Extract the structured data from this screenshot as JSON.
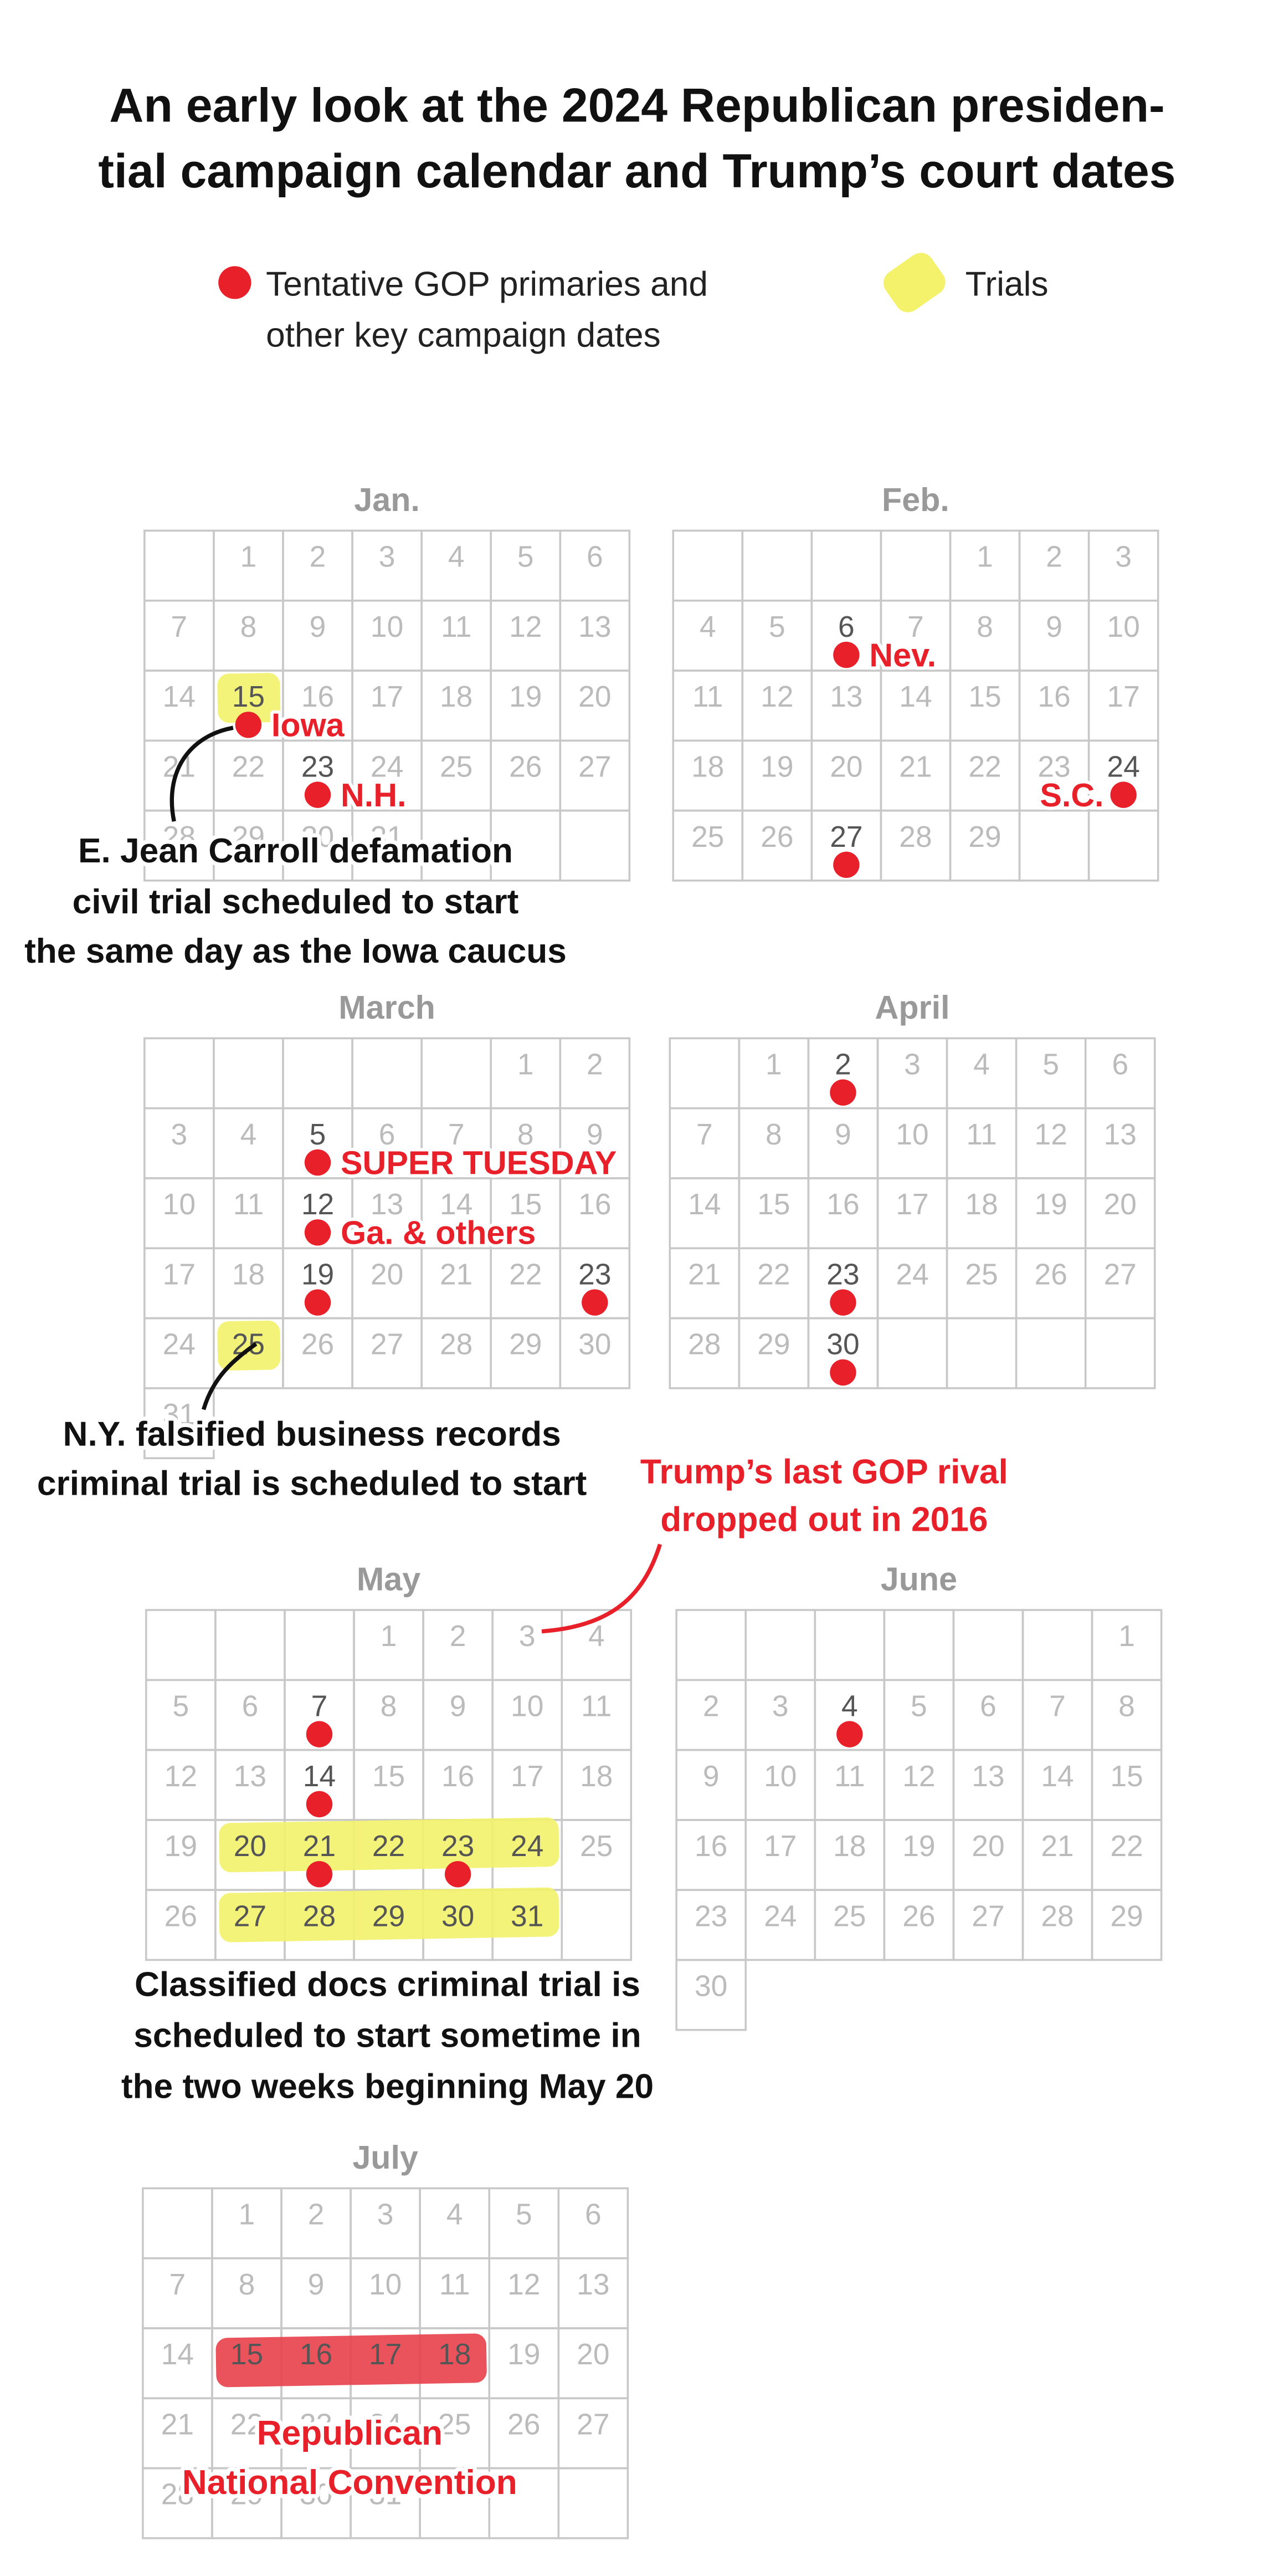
{
  "header": {
    "title_lines": [
      "An early look at the 2024 Republican presiden-",
      "tial campaign calendar and Trump’s court dates"
    ]
  },
  "legend": {
    "primaries_lines": [
      "Tentative GOP primaries and",
      "other key campaign dates"
    ],
    "trials": "Trials"
  },
  "months": [
    {
      "name": "Jan.",
      "weeks": [
        [
          null,
          1,
          2,
          3,
          4,
          5,
          6
        ],
        [
          7,
          8,
          9,
          10,
          11,
          12,
          13
        ],
        [
          14,
          15,
          16,
          17,
          18,
          19,
          20
        ],
        [
          21,
          22,
          23,
          24,
          25,
          26,
          27
        ],
        [
          28,
          29,
          30,
          31,
          null,
          null,
          null
        ]
      ],
      "events": [
        {
          "day": 15,
          "label": "Iowa"
        },
        {
          "day": 23,
          "label": "N.H."
        }
      ],
      "trial_days": [
        15
      ]
    },
    {
      "name": "Feb.",
      "weeks": [
        [
          null,
          null,
          null,
          null,
          1,
          2,
          3
        ],
        [
          4,
          5,
          6,
          7,
          8,
          9,
          10
        ],
        [
          11,
          12,
          13,
          14,
          15,
          16,
          17
        ],
        [
          18,
          19,
          20,
          21,
          22,
          23,
          24
        ],
        [
          25,
          26,
          27,
          28,
          29,
          null,
          null
        ]
      ],
      "events": [
        {
          "day": 6,
          "label": "Nev."
        },
        {
          "day": 24,
          "label": "S.C."
        },
        {
          "day": 27
        }
      ]
    },
    {
      "name": "March",
      "weeks": [
        [
          null,
          null,
          null,
          null,
          null,
          1,
          2
        ],
        [
          3,
          4,
          5,
          6,
          7,
          8,
          9
        ],
        [
          10,
          11,
          12,
          13,
          14,
          15,
          16
        ],
        [
          17,
          18,
          19,
          20,
          21,
          22,
          23
        ],
        [
          24,
          25,
          26,
          27,
          28,
          29,
          30
        ],
        [
          31,
          null,
          null,
          null,
          null,
          null,
          null
        ]
      ],
      "events": [
        {
          "day": 5,
          "label": "SUPER TUESDAY"
        },
        {
          "day": 12,
          "label": "Ga. & others"
        },
        {
          "day": 19
        },
        {
          "day": 23
        }
      ],
      "trial_days": [
        25
      ]
    },
    {
      "name": "April",
      "weeks": [
        [
          null,
          1,
          2,
          3,
          4,
          5,
          6
        ],
        [
          7,
          8,
          9,
          10,
          11,
          12,
          13
        ],
        [
          14,
          15,
          16,
          17,
          18,
          19,
          20
        ],
        [
          21,
          22,
          23,
          24,
          25,
          26,
          27
        ],
        [
          28,
          29,
          30,
          null,
          null,
          null,
          null
        ]
      ],
      "events": [
        {
          "day": 2
        },
        {
          "day": 23
        },
        {
          "day": 30
        }
      ]
    },
    {
      "name": "May",
      "weeks": [
        [
          null,
          null,
          null,
          1,
          2,
          3,
          4
        ],
        [
          5,
          6,
          7,
          8,
          9,
          10,
          11
        ],
        [
          12,
          13,
          14,
          15,
          16,
          17,
          18
        ],
        [
          19,
          20,
          21,
          22,
          23,
          24,
          25
        ],
        [
          26,
          27,
          28,
          29,
          30,
          31,
          null
        ]
      ],
      "events": [
        {
          "day": 7
        },
        {
          "day": 14
        },
        {
          "day": 21
        },
        {
          "day": 23
        }
      ],
      "trial_days": [
        20,
        21,
        22,
        23,
        24,
        27,
        28,
        29,
        30,
        31
      ]
    },
    {
      "name": "June",
      "weeks": [
        [
          null,
          null,
          null,
          null,
          null,
          null,
          1
        ],
        [
          2,
          3,
          4,
          5,
          6,
          7,
          8
        ],
        [
          9,
          10,
          11,
          12,
          13,
          14,
          15
        ],
        [
          16,
          17,
          18,
          19,
          20,
          21,
          22
        ],
        [
          23,
          24,
          25,
          26,
          27,
          28,
          29
        ],
        [
          30,
          null,
          null,
          null,
          null,
          null,
          null
        ]
      ],
      "events": [
        {
          "day": 4
        }
      ]
    },
    {
      "name": "July",
      "weeks": [
        [
          null,
          1,
          2,
          3,
          4,
          5,
          6
        ],
        [
          7,
          8,
          9,
          10,
          11,
          12,
          13
        ],
        [
          14,
          15,
          16,
          17,
          18,
          19,
          20
        ],
        [
          21,
          22,
          23,
          24,
          25,
          26,
          27
        ],
        [
          28,
          29,
          30,
          31,
          null,
          null,
          null
        ]
      ],
      "events": [],
      "convention_days": [
        15,
        16,
        17,
        18
      ]
    }
  ],
  "annotations": {
    "carroll_lines": [
      "E. Jean Carroll defamation",
      "civil trial scheduled to start",
      "the same day as the Iowa caucus"
    ],
    "ny_lines": [
      "N.Y. falsified business records",
      "criminal trial is scheduled to start"
    ],
    "rival_lines": [
      "Trump’s last GOP rival",
      "dropped out in 2016"
    ],
    "classified_lines": [
      "Classified docs criminal trial is",
      "scheduled to start sometime in",
      "the two weeks beginning May 20"
    ],
    "convention_lines": [
      "Republican",
      "National Convention"
    ]
  }
}
